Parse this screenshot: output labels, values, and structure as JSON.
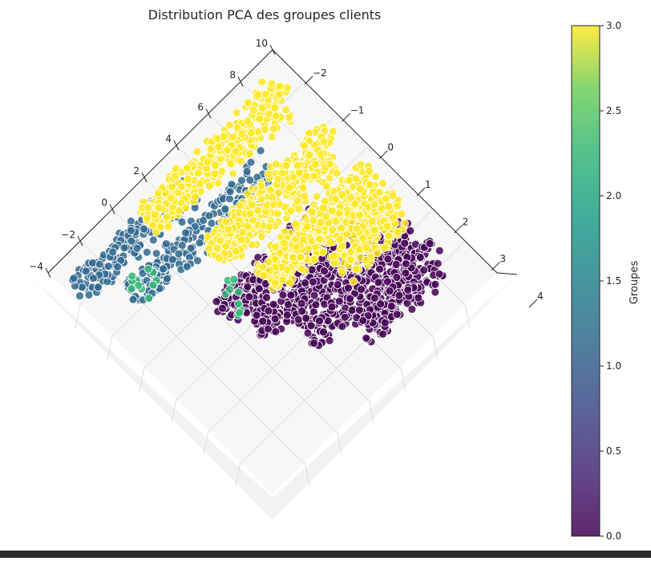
{
  "chart_data": {
    "type": "scatter",
    "projection": "3d",
    "title": "Distribution PCA des groupes clients",
    "axis_a_ticks": [
      "−4",
      "−2",
      "0",
      "2",
      "4",
      "6",
      "8",
      "10"
    ],
    "axis_b_ticks": [
      "−2",
      "−1",
      "0",
      "1",
      "2",
      "3",
      "4"
    ],
    "axis_a_range": [
      -4,
      10
    ],
    "axis_b_range": [
      -2,
      4
    ],
    "colormap": "viridis",
    "point_edge_color": "#ffffff",
    "series": [
      {
        "group": 0,
        "color": "#440154",
        "clusters": [
          {
            "a_range": [
              1.0,
              7.0
            ],
            "b": 0.6,
            "count": 260
          },
          {
            "a_range": [
              1.5,
              8.0
            ],
            "b": 1.2,
            "count": 300
          },
          {
            "a_range": [
              3.0,
              9.3
            ],
            "b": 1.9,
            "count": 330
          },
          {
            "a_range": [
              5.0,
              9.7
            ],
            "b": 2.5,
            "count": 200
          }
        ]
      },
      {
        "group": 1,
        "color": "#31688e",
        "clusters": [
          {
            "a_range": [
              -3.2,
              4.0
            ],
            "b": -1.6,
            "count": 180
          },
          {
            "a_range": [
              -1.5,
              7.0
            ],
            "b": -0.8,
            "count": 200
          }
        ]
      },
      {
        "group": 2,
        "color": "#35b779",
        "clusters": [
          {
            "a_range": [
              -1.2,
              0.0
            ],
            "b": -0.9,
            "count": 12
          },
          {
            "a_range": [
              1.2,
              2.5
            ],
            "b": 0.5,
            "count": 10
          }
        ]
      },
      {
        "group": 3,
        "color": "#fde725",
        "clusters": [
          {
            "a_range": [
              1.5,
              10.0
            ],
            "b": -1.7,
            "count": 360
          },
          {
            "a_range": [
              2.5,
              10.0
            ],
            "b": -0.4,
            "count": 420
          },
          {
            "a_range": [
              3.5,
              10.0
            ],
            "b": 0.6,
            "count": 380
          },
          {
            "a_range": [
              6.5,
              10.0
            ],
            "b": 1.3,
            "count": 160
          }
        ]
      }
    ],
    "colorbar": {
      "label": "Groupes",
      "range": [
        0.0,
        3.0
      ],
      "ticks": [
        "0.0",
        "0.5",
        "1.0",
        "1.5",
        "2.0",
        "2.5",
        "3.0"
      ]
    }
  }
}
